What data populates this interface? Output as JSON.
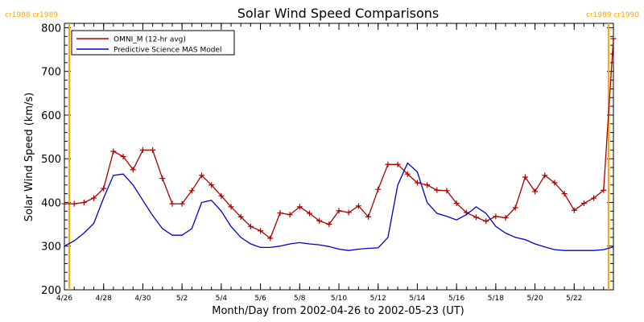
{
  "chart_data": {
    "type": "line",
    "title": "Solar Wind Speed Comparisons",
    "xlabel": "Month/Day from 2002-04-26 to 2002-05-23 (UT)",
    "ylabel": "Solar Wind Speed (km/s)",
    "xlim": [
      "2002-04-26T00:00",
      "2002-05-23T24:00"
    ],
    "ylim": [
      200,
      810
    ],
    "yticks": [
      200,
      300,
      400,
      500,
      600,
      700,
      800
    ],
    "xticks": [
      {
        "date": "2002-04-26",
        "label": "4/26"
      },
      {
        "date": "2002-04-28",
        "label": "4/28"
      },
      {
        "date": "2002-04-30",
        "label": "4/30"
      },
      {
        "date": "2002-05-02",
        "label": "5/2"
      },
      {
        "date": "2002-05-04",
        "label": "5/4"
      },
      {
        "date": "2002-05-06",
        "label": "5/6"
      },
      {
        "date": "2002-05-08",
        "label": "5/8"
      },
      {
        "date": "2002-05-10",
        "label": "5/10"
      },
      {
        "date": "2002-05-12",
        "label": "5/12"
      },
      {
        "date": "2002-05-14",
        "label": "5/14"
      },
      {
        "date": "2002-05-16",
        "label": "5/16"
      },
      {
        "date": "2002-05-18",
        "label": "5/18"
      },
      {
        "date": "2002-05-20",
        "label": "5/20"
      },
      {
        "date": "2002-05-22",
        "label": "5/22"
      }
    ],
    "legend_position": "top-left",
    "carrington_markers": [
      {
        "date": "2002-04-26T06:00",
        "label": "cr1988 cr1989",
        "side": "left"
      },
      {
        "date": "2002-05-23T18:00",
        "label": "cr1989 cr1990",
        "side": "right"
      }
    ],
    "marker_color": "#FFA500",
    "series": [
      {
        "name": "OMNI_M (12-hr avg)",
        "color": "#AA0000",
        "marker": "plus",
        "x": [
          "2002-04-26T00:00",
          "2002-04-26T12:00",
          "2002-04-27T00:00",
          "2002-04-27T12:00",
          "2002-04-28T00:00",
          "2002-04-28T12:00",
          "2002-04-29T00:00",
          "2002-04-29T12:00",
          "2002-04-30T00:00",
          "2002-04-30T12:00",
          "2002-05-01T00:00",
          "2002-05-01T12:00",
          "2002-05-02T00:00",
          "2002-05-02T12:00",
          "2002-05-03T00:00",
          "2002-05-03T12:00",
          "2002-05-04T00:00",
          "2002-05-04T12:00",
          "2002-05-05T00:00",
          "2002-05-05T12:00",
          "2002-05-06T00:00",
          "2002-05-06T12:00",
          "2002-05-07T00:00",
          "2002-05-07T12:00",
          "2002-05-08T00:00",
          "2002-05-08T12:00",
          "2002-05-09T00:00",
          "2002-05-09T12:00",
          "2002-05-10T00:00",
          "2002-05-10T12:00",
          "2002-05-11T00:00",
          "2002-05-11T12:00",
          "2002-05-12T00:00",
          "2002-05-12T12:00",
          "2002-05-13T00:00",
          "2002-05-13T12:00",
          "2002-05-14T00:00",
          "2002-05-14T12:00",
          "2002-05-15T00:00",
          "2002-05-15T12:00",
          "2002-05-16T00:00",
          "2002-05-16T12:00",
          "2002-05-17T00:00",
          "2002-05-17T12:00",
          "2002-05-18T00:00",
          "2002-05-18T12:00",
          "2002-05-19T00:00",
          "2002-05-19T12:00",
          "2002-05-20T00:00",
          "2002-05-20T12:00",
          "2002-05-21T00:00",
          "2002-05-21T12:00",
          "2002-05-22T00:00",
          "2002-05-22T12:00",
          "2002-05-23T00:00",
          "2002-05-23T12:00",
          "2002-05-23T24:00"
        ],
        "values": [
          397,
          397,
          400,
          410,
          432,
          517,
          505,
          475,
          520,
          520,
          455,
          397,
          397,
          427,
          462,
          440,
          415,
          390,
          367,
          345,
          335,
          318,
          376,
          372,
          390,
          375,
          358,
          350,
          381,
          377,
          392,
          367,
          430,
          487,
          487,
          465,
          445,
          440,
          428,
          427,
          398,
          377,
          366,
          357,
          368,
          365,
          388,
          458,
          425,
          462,
          445,
          420,
          382,
          398,
          410,
          428,
          775
        ]
      },
      {
        "name": "Predictive Science MAS Model",
        "color": "#0000CC",
        "marker": "none",
        "x": [
          "2002-04-26T00:00",
          "2002-04-26T12:00",
          "2002-04-27T00:00",
          "2002-04-27T12:00",
          "2002-04-28T00:00",
          "2002-04-28T12:00",
          "2002-04-29T00:00",
          "2002-04-29T12:00",
          "2002-04-30T00:00",
          "2002-04-30T12:00",
          "2002-05-01T00:00",
          "2002-05-01T12:00",
          "2002-05-02T00:00",
          "2002-05-02T12:00",
          "2002-05-03T00:00",
          "2002-05-03T12:00",
          "2002-05-04T00:00",
          "2002-05-04T12:00",
          "2002-05-05T00:00",
          "2002-05-05T12:00",
          "2002-05-06T00:00",
          "2002-05-06T12:00",
          "2002-05-07T00:00",
          "2002-05-07T12:00",
          "2002-05-08T00:00",
          "2002-05-08T12:00",
          "2002-05-09T00:00",
          "2002-05-09T12:00",
          "2002-05-10T00:00",
          "2002-05-10T12:00",
          "2002-05-11T00:00",
          "2002-05-11T12:00",
          "2002-05-12T00:00",
          "2002-05-12T12:00",
          "2002-05-13T00:00",
          "2002-05-13T12:00",
          "2002-05-14T00:00",
          "2002-05-14T12:00",
          "2002-05-15T00:00",
          "2002-05-15T12:00",
          "2002-05-16T00:00",
          "2002-05-16T12:00",
          "2002-05-17T00:00",
          "2002-05-17T12:00",
          "2002-05-18T00:00",
          "2002-05-18T12:00",
          "2002-05-19T00:00",
          "2002-05-19T12:00",
          "2002-05-20T00:00",
          "2002-05-20T12:00",
          "2002-05-21T00:00",
          "2002-05-21T12:00",
          "2002-05-22T00:00",
          "2002-05-22T12:00",
          "2002-05-23T00:00",
          "2002-05-23T12:00",
          "2002-05-23T24:00"
        ],
        "values": [
          300,
          312,
          330,
          352,
          410,
          462,
          465,
          440,
          405,
          370,
          340,
          325,
          325,
          340,
          400,
          405,
          380,
          345,
          320,
          305,
          297,
          297,
          300,
          305,
          308,
          305,
          303,
          299,
          293,
          290,
          293,
          295,
          296,
          320,
          440,
          490,
          470,
          400,
          375,
          368,
          360,
          372,
          390,
          375,
          345,
          330,
          320,
          315,
          305,
          298,
          292,
          290,
          290,
          290,
          290,
          292,
          298
        ]
      }
    ]
  }
}
